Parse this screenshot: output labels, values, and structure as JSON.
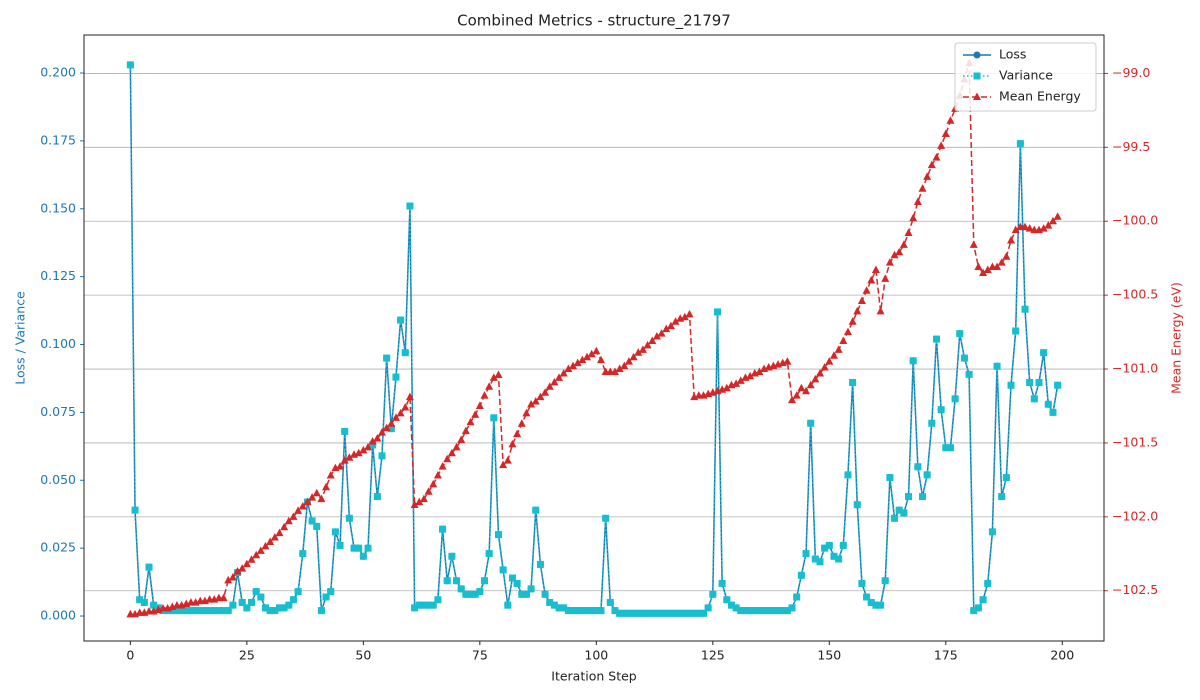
{
  "chart_data": {
    "type": "line",
    "title": "Combined Metrics - structure_21797",
    "xlabel": "Iteration Step",
    "ylabel": "Loss / Variance",
    "y2label": "Mean Energy (eV)",
    "legend": "upper right",
    "grid": "y2",
    "xlim": [
      -9.95,
      208.95
    ],
    "ylim": [
      -0.0092,
      0.214
    ],
    "y2lim": [
      -102.84,
      -98.74
    ],
    "xticks": [
      0,
      25,
      50,
      75,
      100,
      125,
      150,
      175,
      200
    ],
    "yticks": [
      {
        "value": 0,
        "label": "0.000"
      },
      {
        "value": 0.025,
        "label": "0.025"
      },
      {
        "value": 0.05,
        "label": "0.050"
      },
      {
        "value": 0.075,
        "label": "0.075"
      },
      {
        "value": 0.1,
        "label": "0.100"
      },
      {
        "value": 0.125,
        "label": "0.125"
      },
      {
        "value": 0.15,
        "label": "0.150"
      },
      {
        "value": 0.175,
        "label": "0.175"
      },
      {
        "value": 0.2,
        "label": "0.200"
      }
    ],
    "y2ticks": [
      {
        "value": -102.5,
        "label": "−102.5"
      },
      {
        "value": -102.0,
        "label": "−102.0"
      },
      {
        "value": -101.5,
        "label": "−101.5"
      },
      {
        "value": -101.0,
        "label": "−101.0"
      },
      {
        "value": -100.5,
        "label": "−100.5"
      },
      {
        "value": -100.0,
        "label": "−100.0"
      },
      {
        "value": -99.5,
        "label": "−99.5"
      },
      {
        "value": -99.0,
        "label": "−99.0"
      }
    ],
    "x": [
      0,
      1,
      2,
      3,
      4,
      5,
      6,
      7,
      8,
      9,
      10,
      11,
      12,
      13,
      14,
      15,
      16,
      17,
      18,
      19,
      20,
      21,
      22,
      23,
      24,
      25,
      26,
      27,
      28,
      29,
      30,
      31,
      32,
      33,
      34,
      35,
      36,
      37,
      38,
      39,
      40,
      41,
      42,
      43,
      44,
      45,
      46,
      47,
      48,
      49,
      50,
      51,
      52,
      53,
      54,
      55,
      56,
      57,
      58,
      59,
      60,
      61,
      62,
      63,
      64,
      65,
      66,
      67,
      68,
      69,
      70,
      71,
      72,
      73,
      74,
      75,
      76,
      77,
      78,
      79,
      80,
      81,
      82,
      83,
      84,
      85,
      86,
      87,
      88,
      89,
      90,
      91,
      92,
      93,
      94,
      95,
      96,
      97,
      98,
      99,
      100,
      101,
      102,
      103,
      104,
      105,
      106,
      107,
      108,
      109,
      110,
      111,
      112,
      113,
      114,
      115,
      116,
      117,
      118,
      119,
      120,
      121,
      122,
      123,
      124,
      125,
      126,
      127,
      128,
      129,
      130,
      131,
      132,
      133,
      134,
      135,
      136,
      137,
      138,
      139,
      140,
      141,
      142,
      143,
      144,
      145,
      146,
      147,
      148,
      149,
      150,
      151,
      152,
      153,
      154,
      155,
      156,
      157,
      158,
      159,
      160,
      161,
      162,
      163,
      164,
      165,
      166,
      167,
      168,
      169,
      170,
      171,
      172,
      173,
      174,
      175,
      176,
      177,
      178,
      179,
      180,
      181,
      182,
      183,
      184,
      185,
      186,
      187,
      188,
      189,
      190,
      191,
      192,
      193,
      194,
      195,
      196,
      197,
      198,
      199
    ],
    "series": [
      {
        "name": "Loss",
        "color": "#1f77b4",
        "marker": "circle",
        "linestyle": "solid",
        "axis": "y",
        "values": [
          0.203,
          0.039,
          0.006,
          0.005,
          0.018,
          0.004,
          0.003,
          0.002,
          0.002,
          0.002,
          0.002,
          0.002,
          0.002,
          0.002,
          0.002,
          0.002,
          0.002,
          0.002,
          0.002,
          0.002,
          0.002,
          0.002,
          0.004,
          0.016,
          0.005,
          0.003,
          0.005,
          0.009,
          0.007,
          0.003,
          0.002,
          0.002,
          0.003,
          0.003,
          0.004,
          0.006,
          0.009,
          0.023,
          0.042,
          0.035,
          0.033,
          0.002,
          0.007,
          0.009,
          0.031,
          0.026,
          0.068,
          0.036,
          0.025,
          0.025,
          0.022,
          0.025,
          0.063,
          0.044,
          0.059,
          0.095,
          0.069,
          0.088,
          0.109,
          0.097,
          0.151,
          0.003,
          0.004,
          0.004,
          0.004,
          0.004,
          0.006,
          0.032,
          0.013,
          0.022,
          0.013,
          0.01,
          0.008,
          0.008,
          0.008,
          0.009,
          0.013,
          0.023,
          0.073,
          0.03,
          0.017,
          0.004,
          0.014,
          0.012,
          0.008,
          0.008,
          0.01,
          0.039,
          0.019,
          0.008,
          0.005,
          0.004,
          0.003,
          0.003,
          0.002,
          0.002,
          0.002,
          0.002,
          0.002,
          0.002,
          0.002,
          0.002,
          0.036,
          0.005,
          0.002,
          0.001,
          0.001,
          0.001,
          0.001,
          0.001,
          0.001,
          0.001,
          0.001,
          0.001,
          0.001,
          0.001,
          0.001,
          0.001,
          0.001,
          0.001,
          0.001,
          0.001,
          0.001,
          0.001,
          0.003,
          0.008,
          0.112,
          0.012,
          0.006,
          0.004,
          0.003,
          0.002,
          0.002,
          0.002,
          0.002,
          0.002,
          0.002,
          0.002,
          0.002,
          0.002,
          0.002,
          0.002,
          0.003,
          0.007,
          0.015,
          0.023,
          0.071,
          0.021,
          0.02,
          0.025,
          0.026,
          0.022,
          0.021,
          0.026,
          0.052,
          0.086,
          0.041,
          0.012,
          0.007,
          0.005,
          0.004,
          0.004,
          0.013,
          0.051,
          0.036,
          0.039,
          0.038,
          0.044,
          0.094,
          0.055,
          0.044,
          0.052,
          0.071,
          0.102,
          0.076,
          0.062,
          0.062,
          0.08,
          0.104,
          0.095,
          0.089,
          0.002,
          0.003,
          0.006,
          0.012,
          0.031,
          0.092,
          0.044,
          0.051,
          0.085,
          0.105,
          0.174,
          0.113,
          0.086,
          0.08,
          0.086,
          0.097,
          0.078,
          0.075,
          0.085
        ]
      },
      {
        "name": "Variance",
        "color": "#17becf",
        "marker": "square",
        "linestyle": "dotted",
        "axis": "y",
        "values": [
          0.203,
          0.039,
          0.006,
          0.005,
          0.018,
          0.004,
          0.003,
          0.002,
          0.002,
          0.002,
          0.002,
          0.002,
          0.002,
          0.002,
          0.002,
          0.002,
          0.002,
          0.002,
          0.002,
          0.002,
          0.002,
          0.002,
          0.004,
          0.016,
          0.005,
          0.003,
          0.005,
          0.009,
          0.007,
          0.003,
          0.002,
          0.002,
          0.003,
          0.003,
          0.004,
          0.006,
          0.009,
          0.023,
          0.042,
          0.035,
          0.033,
          0.002,
          0.007,
          0.009,
          0.031,
          0.026,
          0.068,
          0.036,
          0.025,
          0.025,
          0.022,
          0.025,
          0.063,
          0.044,
          0.059,
          0.095,
          0.069,
          0.088,
          0.109,
          0.097,
          0.151,
          0.003,
          0.004,
          0.004,
          0.004,
          0.004,
          0.006,
          0.032,
          0.013,
          0.022,
          0.013,
          0.01,
          0.008,
          0.008,
          0.008,
          0.009,
          0.013,
          0.023,
          0.073,
          0.03,
          0.017,
          0.004,
          0.014,
          0.012,
          0.008,
          0.008,
          0.01,
          0.039,
          0.019,
          0.008,
          0.005,
          0.004,
          0.003,
          0.003,
          0.002,
          0.002,
          0.002,
          0.002,
          0.002,
          0.002,
          0.002,
          0.002,
          0.036,
          0.005,
          0.002,
          0.001,
          0.001,
          0.001,
          0.001,
          0.001,
          0.001,
          0.001,
          0.001,
          0.001,
          0.001,
          0.001,
          0.001,
          0.001,
          0.001,
          0.001,
          0.001,
          0.001,
          0.001,
          0.001,
          0.003,
          0.008,
          0.112,
          0.012,
          0.006,
          0.004,
          0.003,
          0.002,
          0.002,
          0.002,
          0.002,
          0.002,
          0.002,
          0.002,
          0.002,
          0.002,
          0.002,
          0.002,
          0.003,
          0.007,
          0.015,
          0.023,
          0.071,
          0.021,
          0.02,
          0.025,
          0.026,
          0.022,
          0.021,
          0.026,
          0.052,
          0.086,
          0.041,
          0.012,
          0.007,
          0.005,
          0.004,
          0.004,
          0.013,
          0.051,
          0.036,
          0.039,
          0.038,
          0.044,
          0.094,
          0.055,
          0.044,
          0.052,
          0.071,
          0.102,
          0.076,
          0.062,
          0.062,
          0.08,
          0.104,
          0.095,
          0.089,
          0.002,
          0.003,
          0.006,
          0.012,
          0.031,
          0.092,
          0.044,
          0.051,
          0.085,
          0.105,
          0.174,
          0.113,
          0.086,
          0.08,
          0.086,
          0.097,
          0.078,
          0.075,
          0.085
        ]
      },
      {
        "name": "Mean Energy",
        "color": "#d62728",
        "marker": "triangle",
        "linestyle": "dashed",
        "axis": "y2",
        "values": [
          -102.66,
          -102.66,
          -102.65,
          -102.65,
          -102.64,
          -102.64,
          -102.63,
          -102.62,
          -102.62,
          -102.61,
          -102.6,
          -102.6,
          -102.59,
          -102.58,
          -102.58,
          -102.57,
          -102.57,
          -102.56,
          -102.56,
          -102.55,
          -102.55,
          -102.43,
          -102.41,
          -102.37,
          -102.35,
          -102.32,
          -102.29,
          -102.26,
          -102.23,
          -102.2,
          -102.17,
          -102.14,
          -102.11,
          -102.07,
          -102.03,
          -102.0,
          -101.96,
          -101.93,
          -101.9,
          -101.87,
          -101.84,
          -101.88,
          -101.8,
          -101.72,
          -101.67,
          -101.66,
          -101.62,
          -101.6,
          -101.58,
          -101.57,
          -101.55,
          -101.53,
          -101.49,
          -101.47,
          -101.43,
          -101.4,
          -101.37,
          -101.33,
          -101.3,
          -101.26,
          -101.19,
          -101.92,
          -101.9,
          -101.88,
          -101.83,
          -101.78,
          -101.72,
          -101.66,
          -101.61,
          -101.57,
          -101.53,
          -101.48,
          -101.42,
          -101.36,
          -101.31,
          -101.25,
          -101.18,
          -101.12,
          -101.06,
          -101.04,
          -101.65,
          -101.62,
          -101.51,
          -101.44,
          -101.37,
          -101.3,
          -101.24,
          -101.22,
          -101.19,
          -101.16,
          -101.12,
          -101.09,
          -101.06,
          -101.03,
          -101.0,
          -100.98,
          -100.96,
          -100.94,
          -100.92,
          -100.9,
          -100.88,
          -100.94,
          -101.02,
          -101.02,
          -101.02,
          -101.0,
          -100.98,
          -100.95,
          -100.92,
          -100.89,
          -100.87,
          -100.84,
          -100.81,
          -100.78,
          -100.76,
          -100.73,
          -100.71,
          -100.68,
          -100.66,
          -100.65,
          -100.63,
          -101.19,
          -101.18,
          -101.18,
          -101.17,
          -101.16,
          -101.15,
          -101.14,
          -101.13,
          -101.11,
          -101.1,
          -101.08,
          -101.06,
          -101.05,
          -101.03,
          -101.02,
          -101.0,
          -100.99,
          -100.98,
          -100.97,
          -100.96,
          -100.95,
          -101.21,
          -101.18,
          -101.13,
          -101.15,
          -101.11,
          -101.07,
          -101.03,
          -100.99,
          -100.95,
          -100.91,
          -100.87,
          -100.81,
          -100.75,
          -100.68,
          -100.61,
          -100.54,
          -100.47,
          -100.4,
          -100.33,
          -100.61,
          -100.39,
          -100.28,
          -100.23,
          -100.21,
          -100.16,
          -100.08,
          -99.98,
          -99.87,
          -99.78,
          -99.7,
          -99.62,
          -99.57,
          -99.49,
          -99.41,
          -99.32,
          -99.24,
          -99.15,
          -99.04,
          -98.93,
          -100.16,
          -100.31,
          -100.35,
          -100.33,
          -100.31,
          -100.31,
          -100.28,
          -100.24,
          -100.13,
          -100.06,
          -100.04,
          -100.04,
          -100.05,
          -100.06,
          -100.06,
          -100.05,
          -100.03,
          -100.0,
          -99.97
        ]
      }
    ]
  }
}
